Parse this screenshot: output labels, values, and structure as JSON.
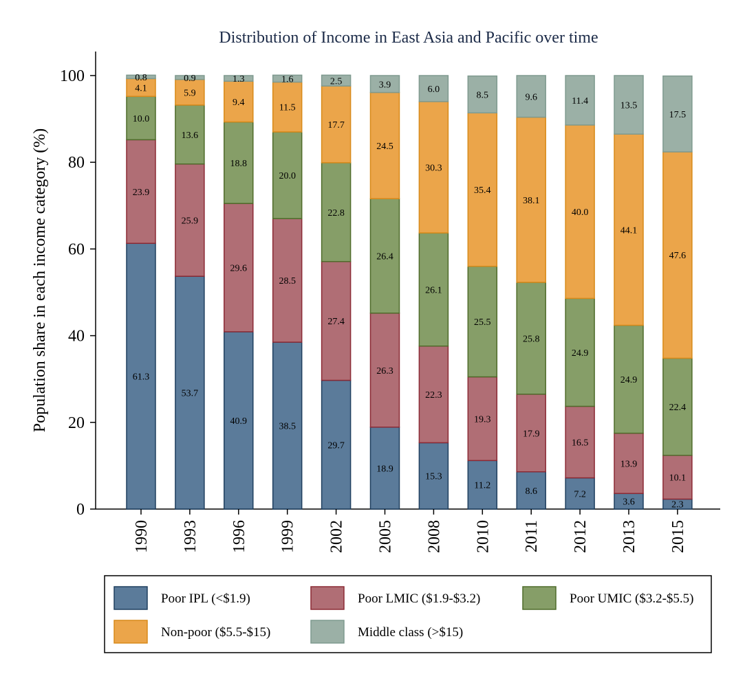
{
  "chart_data": {
    "type": "bar",
    "stacked": true,
    "title": "Distribution of Income in East Asia and Pacific over time",
    "xlabel": "",
    "ylabel": "Population share in each income category (%)",
    "ylim": [
      0,
      100
    ],
    "yticks": [
      0,
      20,
      40,
      60,
      80,
      100
    ],
    "grid": false,
    "legend_position": "bottom",
    "categories": [
      "1990",
      "1993",
      "1996",
      "1999",
      "2002",
      "2005",
      "2008",
      "2010",
      "2011",
      "2012",
      "2013",
      "2015"
    ],
    "series": [
      {
        "name": "Poor IPL (<$1.9)",
        "fill": "#5b7b9a",
        "stroke": "#1f3f5f",
        "values": [
          61.3,
          53.7,
          40.9,
          38.5,
          29.7,
          18.9,
          15.3,
          11.2,
          8.6,
          7.2,
          3.6,
          2.3
        ]
      },
      {
        "name": "Poor LMIC ($1.9-$3.2)",
        "fill": "#b06e75",
        "stroke": "#8b2a35",
        "values": [
          23.9,
          25.9,
          29.6,
          28.5,
          27.4,
          26.3,
          22.3,
          19.3,
          17.9,
          16.5,
          13.9,
          10.1
        ]
      },
      {
        "name": "Poor UMIC ($3.2-$5.5)",
        "fill": "#869e68",
        "stroke": "#4f6b2a",
        "values": [
          10.0,
          13.6,
          18.8,
          20.0,
          22.8,
          26.4,
          26.1,
          25.5,
          25.8,
          24.9,
          24.9,
          22.4
        ]
      },
      {
        "name": "Non-poor ($5.5-$15)",
        "fill": "#eba54a",
        "stroke": "#d88a1a",
        "values": [
          4.1,
          5.9,
          9.4,
          11.5,
          17.7,
          24.5,
          30.3,
          35.4,
          38.1,
          40.0,
          44.1,
          47.6
        ]
      },
      {
        "name": "Middle class (>$15)",
        "fill": "#9bb0a6",
        "stroke": "#7f9a8f",
        "values": [
          0.8,
          0.9,
          1.3,
          1.6,
          2.5,
          3.9,
          6.0,
          8.5,
          9.6,
          11.4,
          13.5,
          17.5
        ]
      }
    ]
  }
}
